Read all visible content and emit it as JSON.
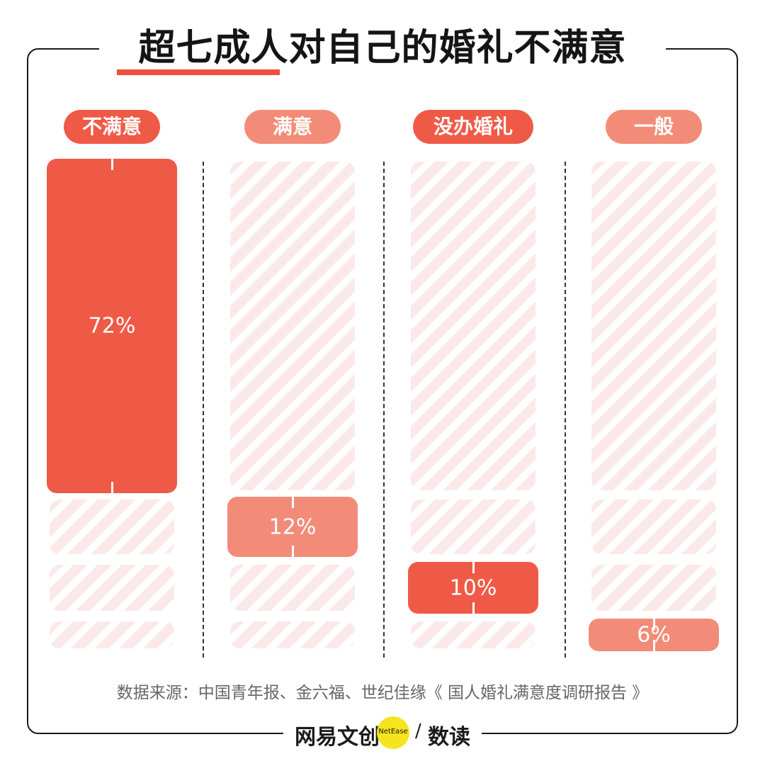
{
  "title": "超七成人对自己的婚礼不满意",
  "colors": {
    "primary": "#ef5a47",
    "secondary": "#f28c78",
    "stripe": "#fbe9e9",
    "title_accent": "#ef4f3c"
  },
  "chart_data": {
    "type": "bar",
    "categories": [
      "不满意",
      "满意",
      "没办婚礼",
      "一般"
    ],
    "values": [
      72,
      12,
      10,
      6
    ],
    "value_labels": [
      "72%",
      "12%",
      "10%",
      "6%"
    ],
    "unit": "%",
    "title": "超七成人对自己的婚礼不满意",
    "ylim": [
      0,
      100
    ],
    "grid": false,
    "legend": "none"
  },
  "source": "数据来源：中国青年报、金六福、世纪佳缘《 国人婚礼满意度调研报告 》",
  "footer": {
    "brand_left": "网易文创",
    "brand_en": "NetEase",
    "separator": "/",
    "brand_right": "数读"
  }
}
